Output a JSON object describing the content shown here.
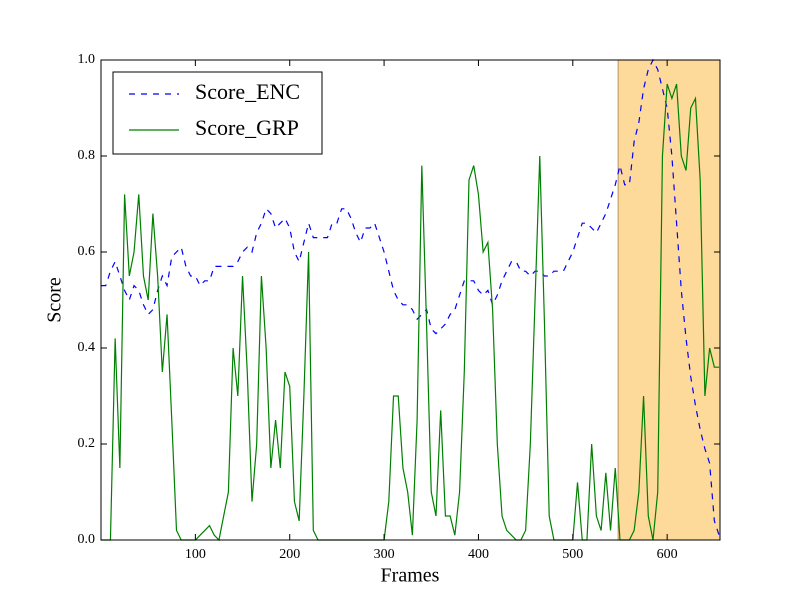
{
  "chart_data": {
    "type": "line",
    "xlabel": "Frames",
    "ylabel": "Score",
    "x": [
      0,
      5,
      10,
      15,
      20,
      25,
      30,
      35,
      40,
      45,
      50,
      55,
      60,
      65,
      70,
      75,
      80,
      85,
      90,
      95,
      100,
      105,
      110,
      115,
      120,
      125,
      130,
      135,
      140,
      145,
      150,
      155,
      160,
      165,
      170,
      175,
      180,
      185,
      190,
      195,
      200,
      205,
      210,
      215,
      220,
      225,
      230,
      235,
      240,
      245,
      250,
      255,
      260,
      265,
      270,
      275,
      280,
      285,
      290,
      295,
      300,
      305,
      310,
      315,
      320,
      325,
      330,
      335,
      340,
      345,
      350,
      355,
      360,
      365,
      370,
      375,
      380,
      385,
      390,
      395,
      400,
      405,
      410,
      415,
      420,
      425,
      430,
      435,
      440,
      445,
      450,
      455,
      460,
      465,
      470,
      475,
      480,
      485,
      490,
      495,
      500,
      505,
      510,
      515,
      520,
      525,
      530,
      535,
      540,
      545,
      550,
      555,
      560,
      565,
      570,
      575,
      580,
      585,
      590,
      595,
      600,
      605,
      610,
      615,
      620,
      625,
      630,
      635,
      640,
      645,
      650,
      655
    ],
    "series": [
      {
        "name": "Score_ENC",
        "color": "#0000ff",
        "dashed": true,
        "values": [
          0.53,
          0.53,
          0.56,
          0.58,
          0.55,
          0.52,
          0.5,
          0.53,
          0.52,
          0.49,
          0.47,
          0.48,
          0.52,
          0.55,
          0.53,
          0.59,
          0.6,
          0.61,
          0.57,
          0.55,
          0.55,
          0.53,
          0.54,
          0.54,
          0.57,
          0.57,
          0.57,
          0.57,
          0.57,
          0.58,
          0.6,
          0.61,
          0.6,
          0.64,
          0.66,
          0.69,
          0.68,
          0.65,
          0.66,
          0.67,
          0.65,
          0.6,
          0.58,
          0.62,
          0.66,
          0.63,
          0.63,
          0.63,
          0.63,
          0.66,
          0.66,
          0.69,
          0.69,
          0.67,
          0.64,
          0.62,
          0.65,
          0.65,
          0.66,
          0.63,
          0.6,
          0.56,
          0.52,
          0.5,
          0.49,
          0.49,
          0.48,
          0.46,
          0.47,
          0.48,
          0.44,
          0.43,
          0.44,
          0.45,
          0.47,
          0.48,
          0.51,
          0.54,
          0.54,
          0.54,
          0.52,
          0.51,
          0.52,
          0.49,
          0.51,
          0.54,
          0.56,
          0.58,
          0.58,
          0.56,
          0.56,
          0.55,
          0.56,
          0.56,
          0.55,
          0.55,
          0.56,
          0.56,
          0.56,
          0.58,
          0.6,
          0.63,
          0.66,
          0.66,
          0.65,
          0.64,
          0.66,
          0.68,
          0.71,
          0.74,
          0.78,
          0.74,
          0.74,
          0.83,
          0.87,
          0.94,
          0.98,
          1.0,
          0.98,
          0.94,
          0.9,
          0.8,
          0.66,
          0.52,
          0.42,
          0.34,
          0.28,
          0.23,
          0.19,
          0.16,
          0.04,
          0.01
        ]
      },
      {
        "name": "Score_GRP",
        "color": "#008000",
        "dashed": false,
        "values": [
          0,
          0,
          0,
          0.42,
          0.15,
          0.72,
          0.55,
          0.6,
          0.72,
          0.55,
          0.5,
          0.68,
          0.55,
          0.35,
          0.47,
          0.25,
          0.02,
          0,
          0,
          0,
          0,
          0.01,
          0.02,
          0.03,
          0.01,
          0,
          0.05,
          0.1,
          0.4,
          0.3,
          0.55,
          0.35,
          0.08,
          0.2,
          0.55,
          0.4,
          0.15,
          0.25,
          0.15,
          0.35,
          0.32,
          0.08,
          0.04,
          0.3,
          0.6,
          0.02,
          0,
          0,
          0,
          0,
          0,
          0,
          0,
          0,
          0,
          0,
          0,
          0,
          0,
          0,
          0,
          0.08,
          0.3,
          0.3,
          0.15,
          0.1,
          0.01,
          0.25,
          0.78,
          0.45,
          0.1,
          0.05,
          0.27,
          0.05,
          0.05,
          0.01,
          0.1,
          0.35,
          0.75,
          0.78,
          0.72,
          0.6,
          0.62,
          0.48,
          0.2,
          0.05,
          0.02,
          0.01,
          0,
          0,
          0.02,
          0.2,
          0.5,
          0.8,
          0.45,
          0.05,
          0,
          0,
          0,
          0,
          0,
          0.12,
          0,
          0,
          0.2,
          0.05,
          0.02,
          0.14,
          0.02,
          0.15,
          0,
          0,
          0,
          0.02,
          0.1,
          0.3,
          0.05,
          0,
          0.1,
          0.8,
          0.95,
          0.92,
          0.95,
          0.8,
          0.77,
          0.9,
          0.92,
          0.75,
          0.3,
          0.4,
          0.36,
          0.36
        ]
      }
    ],
    "highlight": {
      "range": [
        548,
        656
      ],
      "color": "#fdd99a"
    },
    "xlim": [
      0,
      656
    ],
    "xticks": [
      100,
      200,
      300,
      400,
      500,
      600
    ],
    "ylim": [
      0,
      1
    ],
    "yticks": [
      {
        "value": 0,
        "label": "0.0"
      },
      0.2,
      0.4,
      0.6,
      0.8,
      {
        "value": 1,
        "label": "1.0"
      }
    ],
    "legend": "upper-left"
  }
}
